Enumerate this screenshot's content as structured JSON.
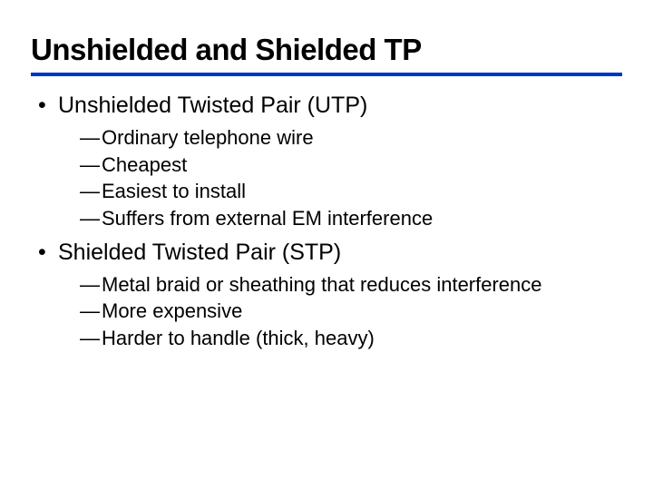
{
  "slide": {
    "title": "Unshielded and Shielded TP",
    "title_fontsize": 33,
    "title_color": "#000000",
    "rule_color": "#0033cc",
    "rule_height": 4,
    "background_color": "#ffffff",
    "bullets": [
      {
        "text": "Unshielded Twisted Pair (UTP)",
        "fontsize": 25,
        "sub": [
          {
            "text": "Ordinary telephone wire"
          },
          {
            "text": "Cheapest"
          },
          {
            "text": "Easiest to install"
          },
          {
            "text": "Suffers from external EM interference"
          }
        ],
        "sub_fontsize": 22
      },
      {
        "text": "Shielded Twisted Pair (STP)",
        "fontsize": 25,
        "sub": [
          {
            "text": "Metal braid or sheathing that reduces interference"
          },
          {
            "text": "More expensive"
          },
          {
            "text": "Harder to handle (thick, heavy)"
          }
        ],
        "sub_fontsize": 22
      }
    ]
  }
}
